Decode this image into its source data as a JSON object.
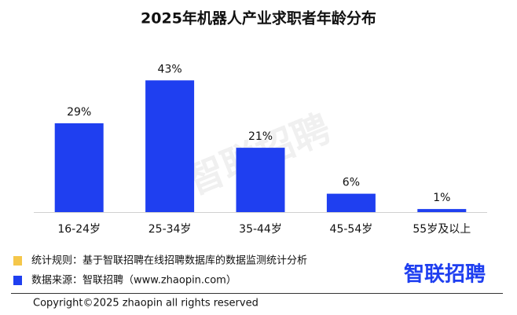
{
  "chart_data": {
    "type": "bar",
    "title": "2025年机器人产业求职者年龄分布",
    "categories": [
      "16-24岁",
      "25-34岁",
      "35-44岁",
      "45-54岁",
      "55岁及以上"
    ],
    "values": [
      29,
      43,
      21,
      6,
      1
    ],
    "value_labels": [
      "29%",
      "43%",
      "21%",
      "6%",
      "1%"
    ],
    "color": "#1f3ff0",
    "grid": false
  },
  "watermark": "智联招聘",
  "footer": {
    "notes": [
      {
        "text": "统计规则：基于智联招聘在线招聘数据库的数据监测统计分析",
        "color": "#f5c74a"
      },
      {
        "text": "数据来源：智联招聘（www.zhaopin.com）",
        "color": "#1f3ff0"
      }
    ],
    "logo": "智联招聘",
    "copyright": "Copyright©2025 zhaopin all rights reserved"
  }
}
